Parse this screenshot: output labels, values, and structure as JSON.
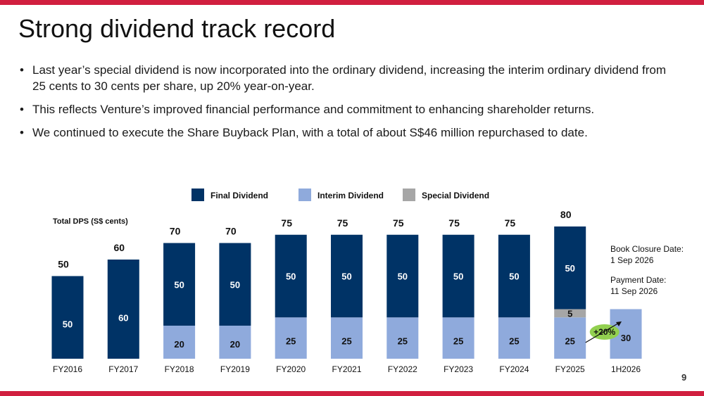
{
  "colors": {
    "accent": "#d11f3f",
    "final": "#003366",
    "interim": "#8faadc",
    "special": "#a6a6a6",
    "highlight": "#92d050"
  },
  "slide": {
    "title": "Strong dividend track record",
    "bullets": [
      "Last year’s special dividend is now incorporated into the ordinary dividend, increasing the interim ordinary dividend from 25 cents to 30 cents per share, up 20% year-on-year.",
      "This reflects Venture’s improved financial performance and commitment to enhancing shareholder returns.",
      "We continued to execute the Share Buyback Plan, with a total of about S$46 million repurchased to date."
    ],
    "page_number": "9"
  },
  "chart_data": {
    "type": "bar",
    "stacked": true,
    "ylabel": "Total DPS (S$ cents)",
    "categories": [
      "FY2016",
      "FY2017",
      "FY2018",
      "FY2019",
      "FY2020",
      "FY2021",
      "FY2022",
      "FY2023",
      "FY2024",
      "FY2025",
      "1H2026"
    ],
    "series": [
      {
        "name": "Interim Dividend",
        "color": "#8faadc",
        "values": [
          0,
          0,
          20,
          20,
          25,
          25,
          25,
          25,
          25,
          25,
          30
        ]
      },
      {
        "name": "Special Dividend",
        "color": "#a6a6a6",
        "values": [
          0,
          0,
          0,
          0,
          0,
          0,
          0,
          0,
          0,
          5,
          0
        ]
      },
      {
        "name": "Final Dividend",
        "color": "#003366",
        "values": [
          50,
          60,
          50,
          50,
          50,
          50,
          50,
          50,
          50,
          50,
          0
        ]
      }
    ],
    "totals": [
      50,
      60,
      70,
      70,
      75,
      75,
      75,
      75,
      75,
      80,
      null
    ],
    "legend_position": "top",
    "grid": false,
    "ylim": [
      0,
      85
    ],
    "annotation": "+20%"
  },
  "notes": {
    "book_closure_label": "Book Closure Date:",
    "book_closure_date": "1 Sep 2026",
    "payment_label": "Payment Date:",
    "payment_date": "11 Sep 2026"
  }
}
